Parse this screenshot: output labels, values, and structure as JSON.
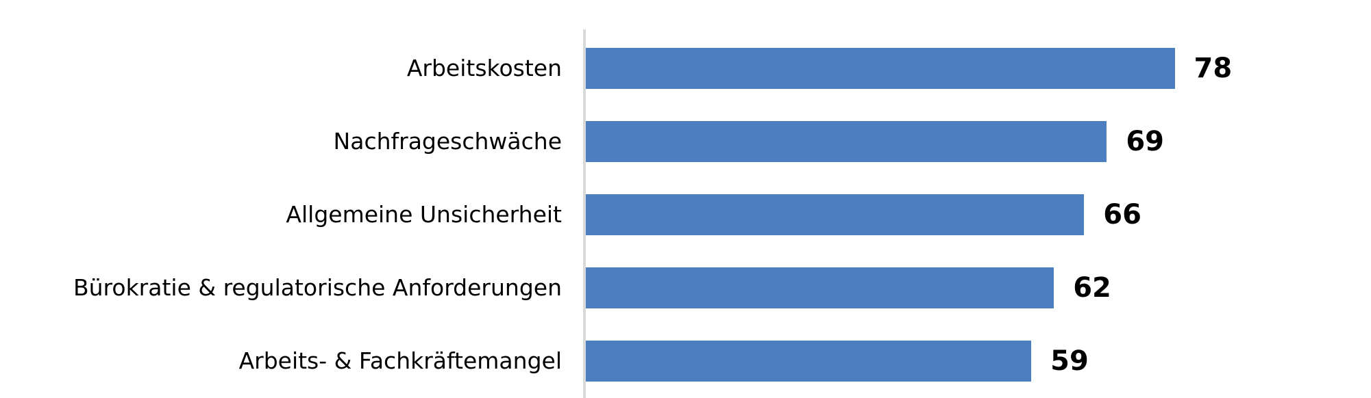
{
  "chart_data": {
    "type": "bar",
    "orientation": "horizontal",
    "title": "",
    "xlabel": "",
    "ylabel": "",
    "categories": [
      "Arbeitskosten",
      "Nachfrageschwäche",
      "Allgemeine Unsicherheit",
      "Bürokratie & regulatorische Anforderungen",
      "Arbeits- & Fachkräftemangel"
    ],
    "values": [
      78,
      69,
      66,
      62,
      59
    ],
    "xlim": [
      0,
      104
    ],
    "grid": false,
    "legend": false,
    "value_label_position": "outside-end",
    "bar_color": "#4d7ec0",
    "axis_line_color": "#d9d9d9",
    "text_color": "#000000",
    "background_color": "#ffffff"
  }
}
